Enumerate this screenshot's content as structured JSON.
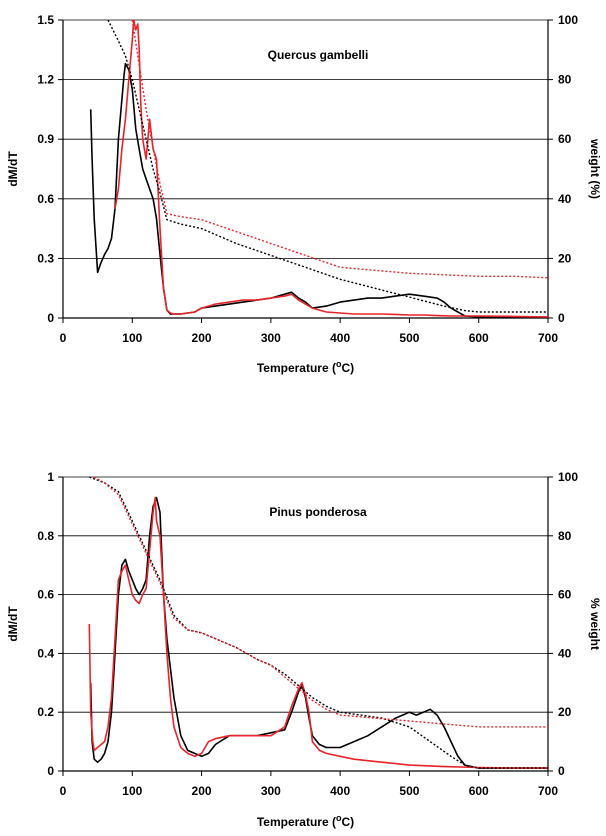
{
  "chart_data": [
    {
      "type": "line",
      "title": "Quercus gambelli",
      "xlabel": "Temperature (°C)",
      "ylabel": "dM/dT",
      "y2label": "weight (%)",
      "xlim": [
        0,
        700
      ],
      "ylim": [
        0,
        1.5
      ],
      "y2lim": [
        0,
        100
      ],
      "xticks": [
        "0",
        "100",
        "200",
        "300",
        "400",
        "500",
        "600",
        "700"
      ],
      "yticks": [
        "0",
        "0.3",
        "0.6",
        "0.9",
        "1.2",
        "1.5"
      ],
      "y2ticks": [
        "0",
        "20",
        "40",
        "60",
        "80",
        "100"
      ],
      "grid": "horizontal",
      "series": [
        {
          "color": "#000000",
          "style": "solid",
          "axis": "left",
          "x": [
            40,
            42,
            45,
            50,
            55,
            60,
            65,
            70,
            75,
            80,
            85,
            88,
            90,
            95,
            100,
            105,
            110,
            115,
            120,
            125,
            130,
            135,
            140,
            145,
            150,
            155,
            160,
            170,
            180,
            190,
            200,
            220,
            240,
            260,
            280,
            300,
            320,
            330,
            340,
            350,
            360,
            380,
            400,
            420,
            440,
            460,
            480,
            500,
            520,
            540,
            550,
            560,
            570,
            580,
            600,
            620,
            650,
            700
          ],
          "y": [
            1.05,
            0.8,
            0.5,
            0.23,
            0.28,
            0.32,
            0.35,
            0.4,
            0.55,
            0.9,
            1.1,
            1.22,
            1.28,
            1.25,
            1.15,
            0.95,
            0.85,
            0.75,
            0.7,
            0.65,
            0.6,
            0.5,
            0.32,
            0.15,
            0.04,
            0.02,
            0.02,
            0.02,
            0.025,
            0.03,
            0.05,
            0.06,
            0.07,
            0.08,
            0.09,
            0.1,
            0.12,
            0.13,
            0.1,
            0.08,
            0.05,
            0.06,
            0.08,
            0.09,
            0.1,
            0.1,
            0.11,
            0.12,
            0.11,
            0.1,
            0.08,
            0.05,
            0.03,
            0.01,
            0.005,
            0.005,
            0.005,
            0.005
          ]
        },
        {
          "color": "#e8242a",
          "style": "solid",
          "axis": "left",
          "x": [
            75,
            80,
            85,
            90,
            95,
            100,
            102,
            105,
            108,
            110,
            112,
            115,
            120,
            125,
            130,
            135,
            140,
            145,
            150,
            155,
            160,
            170,
            180,
            190,
            200,
            220,
            240,
            260,
            280,
            300,
            320,
            330,
            340,
            350,
            360,
            380,
            400,
            420,
            440,
            460,
            480,
            500,
            520,
            540,
            560,
            580,
            600,
            650,
            700
          ],
          "y": [
            0.55,
            0.65,
            0.85,
            1.0,
            1.2,
            1.4,
            1.5,
            1.45,
            1.48,
            1.35,
            1.1,
            0.9,
            0.8,
            1.0,
            0.85,
            0.8,
            0.45,
            0.15,
            0.04,
            0.025,
            0.02,
            0.02,
            0.025,
            0.03,
            0.05,
            0.07,
            0.08,
            0.09,
            0.09,
            0.1,
            0.11,
            0.12,
            0.09,
            0.07,
            0.05,
            0.03,
            0.025,
            0.02,
            0.02,
            0.02,
            0.018,
            0.015,
            0.015,
            0.012,
            0.01,
            0.01,
            0.01,
            0.008,
            0.005
          ]
        },
        {
          "color": "#000000",
          "style": "dotted",
          "axis": "right",
          "x": [
            65,
            80,
            90,
            100,
            110,
            120,
            130,
            140,
            150,
            170,
            200,
            250,
            300,
            350,
            400,
            450,
            500,
            550,
            580,
            600,
            650,
            700
          ],
          "y": [
            100,
            93,
            88,
            80,
            70,
            60,
            50,
            42,
            33,
            31.5,
            30,
            25,
            21,
            17,
            13,
            10,
            7,
            4,
            2.5,
            2,
            2,
            2
          ]
        },
        {
          "color": "#e8242a",
          "style": "dotted",
          "axis": "right",
          "x": [
            100,
            110,
            120,
            130,
            140,
            150,
            170,
            200,
            250,
            300,
            350,
            400,
            450,
            500,
            550,
            600,
            650,
            700
          ],
          "y": [
            100,
            85,
            70,
            57,
            45,
            35,
            34,
            33,
            29,
            25,
            21,
            17,
            16,
            15,
            14.5,
            14,
            14,
            13.5
          ]
        }
      ]
    },
    {
      "type": "line",
      "title": "Pinus ponderosa",
      "xlabel": "Temperature (°C)",
      "ylabel": "dM/dT",
      "y2label": "% weight",
      "xlim": [
        0,
        700
      ],
      "ylim": [
        0,
        1
      ],
      "y2lim": [
        0,
        100
      ],
      "xticks": [
        "0",
        "100",
        "200",
        "300",
        "400",
        "500",
        "600",
        "700"
      ],
      "yticks": [
        "0",
        "0.2",
        "0.4",
        "0.6",
        "0.8",
        "1"
      ],
      "y2ticks": [
        "0",
        "20",
        "40",
        "60",
        "80",
        "100"
      ],
      "grid": "horizontal",
      "series": [
        {
          "color": "#000000",
          "style": "solid",
          "axis": "left",
          "x": [
            40,
            42,
            45,
            50,
            55,
            60,
            65,
            70,
            75,
            80,
            85,
            90,
            95,
            100,
            105,
            110,
            115,
            120,
            125,
            130,
            135,
            140,
            145,
            150,
            155,
            160,
            170,
            180,
            190,
            200,
            210,
            220,
            240,
            260,
            280,
            300,
            320,
            330,
            340,
            345,
            350,
            355,
            360,
            370,
            380,
            400,
            420,
            440,
            460,
            480,
            500,
            510,
            520,
            530,
            540,
            550,
            560,
            570,
            580,
            600,
            650,
            700
          ],
          "y": [
            0.3,
            0.1,
            0.04,
            0.03,
            0.04,
            0.06,
            0.1,
            0.2,
            0.4,
            0.6,
            0.7,
            0.72,
            0.68,
            0.65,
            0.62,
            0.6,
            0.62,
            0.65,
            0.8,
            0.9,
            0.93,
            0.88,
            0.6,
            0.45,
            0.35,
            0.25,
            0.12,
            0.07,
            0.06,
            0.05,
            0.06,
            0.09,
            0.12,
            0.12,
            0.12,
            0.13,
            0.14,
            0.2,
            0.27,
            0.29,
            0.25,
            0.18,
            0.12,
            0.09,
            0.08,
            0.08,
            0.1,
            0.12,
            0.15,
            0.18,
            0.2,
            0.19,
            0.2,
            0.21,
            0.19,
            0.15,
            0.1,
            0.05,
            0.02,
            0.01,
            0.01,
            0.01
          ]
        },
        {
          "color": "#e8242a",
          "style": "solid",
          "axis": "left",
          "x": [
            38,
            40,
            43,
            45,
            50,
            55,
            60,
            65,
            70,
            75,
            80,
            85,
            90,
            95,
            100,
            105,
            110,
            115,
            120,
            125,
            130,
            133,
            135,
            140,
            145,
            150,
            155,
            160,
            170,
            180,
            190,
            200,
            210,
            220,
            240,
            260,
            280,
            300,
            320,
            330,
            340,
            345,
            350,
            355,
            360,
            370,
            380,
            400,
            420,
            440,
            460,
            480,
            500,
            550,
            600,
            650,
            700
          ],
          "y": [
            0.5,
            0.2,
            0.1,
            0.07,
            0.08,
            0.09,
            0.1,
            0.15,
            0.25,
            0.45,
            0.65,
            0.68,
            0.7,
            0.65,
            0.6,
            0.58,
            0.57,
            0.6,
            0.62,
            0.75,
            0.88,
            0.93,
            0.85,
            0.8,
            0.6,
            0.4,
            0.25,
            0.15,
            0.08,
            0.06,
            0.05,
            0.06,
            0.1,
            0.11,
            0.12,
            0.12,
            0.12,
            0.12,
            0.15,
            0.22,
            0.28,
            0.3,
            0.26,
            0.2,
            0.1,
            0.07,
            0.06,
            0.05,
            0.04,
            0.035,
            0.03,
            0.025,
            0.02,
            0.015,
            0.012,
            0.01,
            0.01
          ]
        },
        {
          "color": "#000000",
          "style": "dotted",
          "axis": "right",
          "x": [
            38,
            60,
            80,
            100,
            120,
            140,
            160,
            180,
            200,
            220,
            250,
            280,
            300,
            320,
            340,
            360,
            380,
            400,
            430,
            460,
            500,
            530,
            560,
            580,
            600,
            650,
            700
          ],
          "y": [
            100,
            98,
            95,
            85,
            75,
            65,
            53,
            48,
            47,
            45,
            42,
            38,
            36,
            33,
            29,
            25,
            22,
            20,
            19,
            18,
            15,
            10,
            5,
            2,
            1,
            1,
            1
          ]
        },
        {
          "color": "#e8242a",
          "style": "dotted",
          "axis": "right",
          "x": [
            45,
            60,
            80,
            100,
            120,
            140,
            160,
            180,
            200,
            220,
            250,
            280,
            300,
            320,
            340,
            360,
            380,
            400,
            450,
            500,
            550,
            600,
            650,
            700
          ],
          "y": [
            100,
            98,
            94,
            84,
            74,
            64,
            52,
            48,
            47,
            45,
            42,
            38,
            36,
            32,
            28,
            24,
            21,
            19,
            18,
            17,
            16,
            15,
            15,
            15
          ]
        }
      ]
    }
  ]
}
